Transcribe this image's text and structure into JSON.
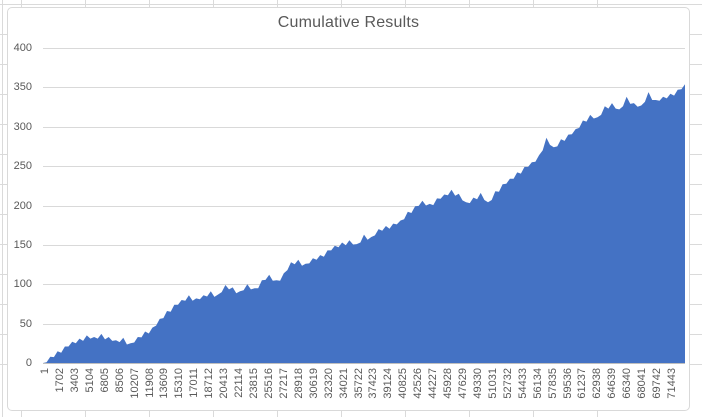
{
  "chart_data": {
    "type": "area",
    "title": "Cumulative Results",
    "xlabel": "",
    "ylabel": "",
    "ylim": [
      0,
      400
    ],
    "y_step": 50,
    "grid": true,
    "legend": false,
    "y_tick_labels": [
      "0",
      "50",
      "100",
      "150",
      "200",
      "250",
      "300",
      "350",
      "400"
    ],
    "x_tick_labels": [
      "1",
      "1702",
      "3403",
      "5104",
      "6805",
      "8506",
      "10207",
      "11908",
      "13609",
      "15310",
      "17011",
      "18712",
      "20413",
      "22114",
      "23815",
      "25516",
      "27217",
      "28918",
      "30619",
      "32320",
      "34021",
      "35722",
      "37423",
      "39124",
      "40825",
      "42526",
      "44227",
      "45928",
      "47629",
      "49330",
      "51031",
      "52732",
      "54433",
      "56134",
      "57835",
      "59536",
      "61237",
      "62938",
      "64639",
      "66340",
      "68041",
      "69742",
      "71443"
    ],
    "x_first": 1,
    "x_last": 71443,
    "x_label_step": 1701,
    "series": [
      {
        "name": "Cumulative Results",
        "sampling": "evenly spaced across x-axis",
        "values": [
          0,
          8,
          15,
          21,
          27,
          31,
          35,
          33,
          37,
          33,
          29,
          32,
          25,
          33,
          40,
          45,
          56,
          66,
          74,
          80,
          86,
          82,
          86,
          91,
          87,
          99,
          96,
          91,
          100,
          95,
          105,
          112,
          105,
          114,
          128,
          131,
          126,
          133,
          137,
          143,
          149,
          153,
          156,
          151,
          163,
          160,
          170,
          174,
          177,
          181,
          192,
          199,
          206,
          202,
          209,
          214,
          220,
          215,
          204,
          210,
          216,
          204,
          218,
          227,
          234,
          242,
          249,
          255,
          264,
          286,
          274,
          284,
          290,
          297,
          308,
          315,
          312,
          326,
          330,
          322,
          338,
          330,
          327,
          344,
          334,
          338,
          342,
          347,
          354
        ]
      }
    ]
  },
  "style": {
    "area_fill": "#4472C4",
    "gridline_color": "#D9D9D9",
    "axis_line_color": "#BFBFBF",
    "label_color": "#595959",
    "title_color": "#595959",
    "chart_border_color": "#D9D9D9",
    "worksheet_grid_color": "#DADADA",
    "chart_background": "#FFFFFF"
  }
}
